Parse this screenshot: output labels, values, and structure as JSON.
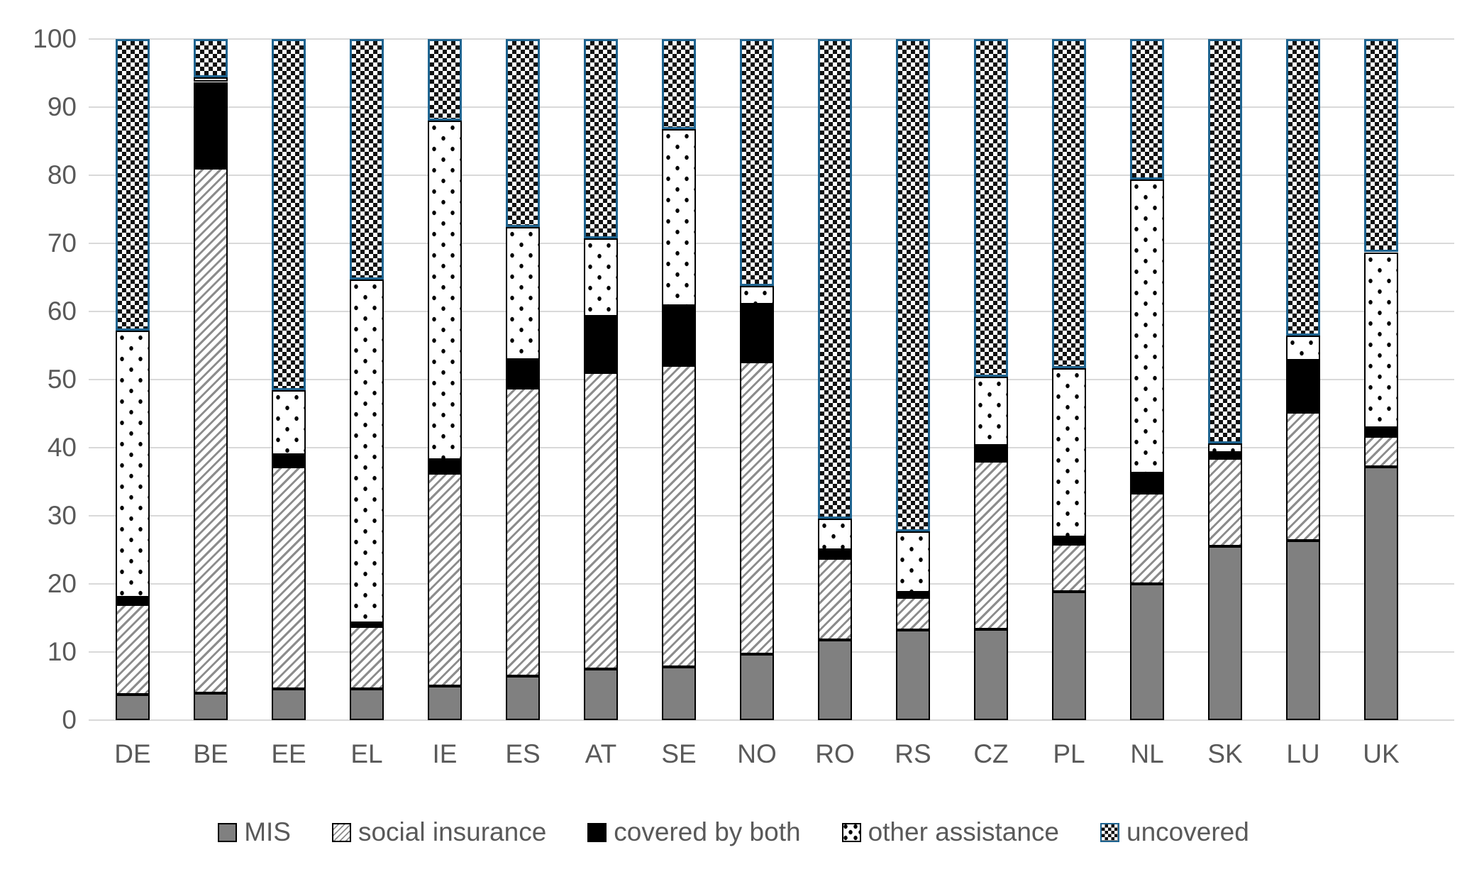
{
  "chart_data": {
    "type": "bar",
    "stacked": true,
    "title": "",
    "xlabel": "",
    "ylabel": "",
    "grid": true,
    "legend_position": "bottom",
    "y_axis": {
      "min": 0,
      "max": 100,
      "step": 10,
      "tick_labels": [
        "0",
        "10",
        "20",
        "30",
        "40",
        "50",
        "60",
        "70",
        "80",
        "90",
        "100"
      ]
    },
    "categories": [
      "DE",
      "BE",
      "EE",
      "EL",
      "IE",
      "ES",
      "AT",
      "SE",
      "NO",
      "RO",
      "RS",
      "CZ",
      "PL",
      "NL",
      "SK",
      "LU",
      "UK"
    ],
    "series": [
      {
        "name": "MIS",
        "pattern": "solid-gray",
        "values": [
          3.7,
          4.0,
          4.6,
          4.6,
          5.0,
          6.5,
          7.5,
          7.8,
          9.7,
          11.8,
          13.2,
          13.3,
          18.9,
          20.0,
          25.5,
          26.4,
          37.2
        ]
      },
      {
        "name": "social insurance",
        "pattern": "diagonal-hatch",
        "values": [
          13.3,
          77.0,
          32.6,
          9.1,
          31.2,
          42.3,
          43.5,
          44.3,
          42.9,
          12.0,
          4.8,
          24.7,
          6.9,
          13.3,
          12.9,
          18.8,
          4.5
        ]
      },
      {
        "name": "covered by both",
        "pattern": "solid-black",
        "values": [
          1.0,
          12.7,
          1.8,
          0.6,
          2.0,
          4.1,
          8.3,
          8.7,
          8.4,
          1.2,
          0.8,
          2.3,
          1.1,
          3.0,
          0.9,
          7.6,
          1.2
        ]
      },
      {
        "name": "other assistance",
        "pattern": "dots",
        "values": [
          39.2,
          0.7,
          9.4,
          50.4,
          49.8,
          19.5,
          11.4,
          26.0,
          2.8,
          4.6,
          8.9,
          10.1,
          24.8,
          43.1,
          1.3,
          3.7,
          25.8
        ]
      },
      {
        "name": "uncovered",
        "pattern": "checker",
        "values": [
          42.8,
          5.6,
          51.6,
          35.3,
          12.0,
          27.6,
          29.3,
          13.2,
          36.2,
          70.4,
          72.3,
          49.6,
          48.3,
          20.6,
          59.4,
          43.5,
          31.3
        ]
      }
    ],
    "colors": {
      "mis_fill": "#808080",
      "segment_border": "#000000",
      "uncovered_border": "#1F6490",
      "gridline": "#D9D9D9",
      "axis_text": "#595959",
      "background": "#FFFFFF"
    }
  }
}
